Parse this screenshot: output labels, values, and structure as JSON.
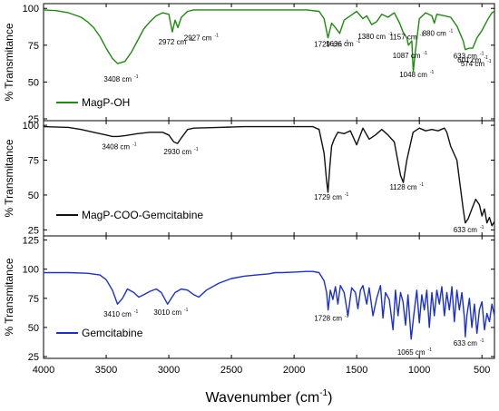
{
  "chart_data": {
    "type": "line",
    "xlabel": "Wavenumber (cm",
    "xlabel_sup": "-1",
    "xlabel_close": ")",
    "x_reversed": true,
    "xlim": [
      4000,
      400
    ],
    "x_ticks": [
      4000,
      3500,
      3000,
      2500,
      2000,
      1500,
      1000,
      500
    ],
    "grid": false,
    "legend_placement": "bottom-left of each panel",
    "panels": [
      {
        "ylabel": "% Transmitance",
        "ylim": [
          25,
          102
        ],
        "y_ticks": [
          25,
          50,
          75,
          100
        ],
        "color": "#1e8a0e",
        "series": {
          "name": "MagP-OH",
          "x": [
            4000,
            3900,
            3800,
            3700,
            3650,
            3600,
            3550,
            3500,
            3450,
            3408,
            3350,
            3300,
            3250,
            3200,
            3150,
            3100,
            3050,
            3000,
            2972,
            2950,
            2927,
            2900,
            2850,
            2800,
            2600,
            2400,
            2200,
            2000,
            1900,
            1800,
            1760,
            1729,
            1700,
            1670,
            1636,
            1600,
            1550,
            1500,
            1450,
            1420,
            1380,
            1340,
            1300,
            1250,
            1200,
            1157,
            1130,
            1100,
            1087,
            1060,
            1048,
            1035,
            1000,
            950,
            900,
            880,
            860,
            800,
            750,
            700,
            650,
            633,
            601,
            574,
            540,
            500,
            450,
            420,
            400
          ],
          "y": [
            99,
            98.5,
            97,
            94,
            91,
            87,
            81,
            73,
            66,
            62.5,
            64,
            70,
            78,
            86,
            91,
            95,
            97,
            96,
            84,
            92,
            87,
            94,
            98,
            99,
            99,
            99,
            99,
            99,
            99,
            98,
            93,
            80,
            90,
            87,
            83,
            92,
            95,
            98,
            93,
            95,
            89,
            91,
            96,
            94,
            97,
            90,
            84,
            80,
            75,
            78,
            57,
            68,
            93,
            97,
            95,
            90,
            96,
            95,
            94,
            88,
            78,
            72,
            73,
            73,
            80,
            85,
            93,
            97,
            98
          ]
        },
        "annotations": [
          {
            "label": "3408 cm",
            "sup": "-1",
            "x": 3408
          },
          {
            "label": "2972 cm",
            "sup": "-1",
            "x": 2972
          },
          {
            "label": "2927 cm",
            "sup": "-1",
            "x": 2927
          },
          {
            "label": "1729 cm",
            "sup": "-1",
            "x": 1729
          },
          {
            "label": "1636 cm",
            "sup": "-1",
            "x": 1636
          },
          {
            "label": "1380 cm",
            "sup": "-1",
            "x": 1380
          },
          {
            "label": "1157 cm",
            "sup": "-1",
            "x": 1157
          },
          {
            "label": "1087 cm",
            "sup": "-1",
            "x": 1087
          },
          {
            "label": "1048 cm",
            "sup": "-1",
            "x": 1048
          },
          {
            "label": "880 cm",
            "sup": "-1",
            "x": 880
          },
          {
            "label": "633 cm",
            "sup": "-1",
            "x": 633
          },
          {
            "label": "601 cm",
            "sup": "-1",
            "x": 601
          },
          {
            "label": "574 cm",
            "sup": "-1",
            "x": 574
          }
        ]
      },
      {
        "ylabel": "% Transmitance",
        "ylim": [
          22,
          102
        ],
        "y_ticks": [
          25,
          50,
          75,
          100
        ],
        "color": "#111111",
        "series": {
          "name": "MagP-COO-Gemcitabine",
          "x": [
            4000,
            3800,
            3700,
            3600,
            3500,
            3450,
            3408,
            3350,
            3250,
            3150,
            3050,
            3000,
            2960,
            2930,
            2900,
            2850,
            2800,
            2600,
            2400,
            2200,
            2000,
            1850,
            1800,
            1760,
            1740,
            1729,
            1715,
            1700,
            1680,
            1650,
            1600,
            1550,
            1500,
            1450,
            1400,
            1350,
            1300,
            1250,
            1200,
            1150,
            1128,
            1100,
            1050,
            1000,
            950,
            900,
            850,
            800,
            780,
            750,
            700,
            650,
            633,
            610,
            580,
            550,
            520,
            500,
            480,
            460,
            440,
            420,
            400
          ],
          "y": [
            99,
            98.5,
            97,
            95,
            93,
            92,
            92,
            92.5,
            94,
            95,
            95,
            93,
            88,
            87,
            91,
            97,
            98,
            98.5,
            99,
            99,
            99,
            99,
            97,
            80,
            60,
            52,
            70,
            85,
            90,
            95,
            94,
            96,
            86,
            98,
            90,
            93,
            97,
            93,
            88,
            64,
            59,
            75,
            95,
            98,
            96,
            97,
            96,
            98,
            95,
            85,
            75,
            40,
            30,
            33,
            40,
            47,
            43,
            35,
            40,
            30,
            34,
            28,
            31
          ]
        },
        "annotations": [
          {
            "label": "3408 cm",
            "sup": "-1",
            "x": 3408
          },
          {
            "label": "2930 cm",
            "sup": "-1",
            "x": 2930
          },
          {
            "label": "1729 cm",
            "sup": "-1",
            "x": 1729
          },
          {
            "label": "1128 cm",
            "sup": "-1",
            "x": 1128
          },
          {
            "label": "633 cm",
            "sup": "-1",
            "x": 633
          }
        ]
      },
      {
        "ylabel": "% Transmitance",
        "ylim": [
          25,
          127
        ],
        "y_ticks": [
          25,
          50,
          75,
          100,
          125
        ],
        "color": "#1a2fd6",
        "series": {
          "name": "Gemcitabine",
          "x": [
            4000,
            3800,
            3650,
            3550,
            3500,
            3450,
            3410,
            3370,
            3330,
            3280,
            3240,
            3200,
            3150,
            3100,
            3060,
            3030,
            3010,
            2980,
            2950,
            2900,
            2850,
            2800,
            2760,
            2700,
            2600,
            2500,
            2400,
            2300,
            2200,
            2150,
            2100,
            2000,
            1900,
            1850,
            1800,
            1760,
            1740,
            1728,
            1710,
            1690,
            1670,
            1650,
            1630,
            1600,
            1570,
            1540,
            1510,
            1490,
            1470,
            1450,
            1420,
            1400,
            1370,
            1340,
            1310,
            1290,
            1270,
            1240,
            1210,
            1190,
            1170,
            1150,
            1130,
            1110,
            1090,
            1065,
            1045,
            1020,
            1000,
            980,
            960,
            940,
            920,
            900,
            880,
            860,
            840,
            820,
            800,
            780,
            760,
            740,
            720,
            700,
            680,
            660,
            640,
            633,
            620,
            600,
            580,
            560,
            540,
            520,
            500,
            480,
            460,
            440,
            420,
            400
          ],
          "y": [
            97,
            97,
            96.5,
            95,
            91,
            82,
            70,
            75,
            83,
            80,
            76,
            78,
            81,
            83,
            80,
            74,
            70,
            75,
            80,
            83,
            82,
            78,
            76,
            82,
            88,
            92,
            94,
            95,
            96,
            97,
            97,
            97.5,
            98,
            98,
            97,
            90,
            80,
            65,
            82,
            74,
            85,
            70,
            86,
            80,
            60,
            84,
            80,
            66,
            82,
            86,
            70,
            84,
            60,
            75,
            86,
            58,
            80,
            74,
            48,
            82,
            60,
            80,
            72,
            52,
            78,
            40,
            60,
            82,
            54,
            78,
            65,
            82,
            50,
            80,
            60,
            82,
            70,
            85,
            60,
            80,
            65,
            85,
            55,
            82,
            65,
            80,
            58,
            42,
            60,
            75,
            50,
            70,
            45,
            65,
            72,
            48,
            62,
            55,
            70,
            60
          ]
        },
        "annotations": [
          {
            "label": "3410 cm",
            "sup": "-1",
            "x": 3410
          },
          {
            "label": "3010 cm",
            "sup": "-1",
            "x": 3010
          },
          {
            "label": "1728 cm",
            "sup": "-1",
            "x": 1728
          },
          {
            "label": "1065 cm",
            "sup": "-1",
            "x": 1065
          },
          {
            "label": "633 cm",
            "sup": "-1",
            "x": 633
          }
        ]
      }
    ]
  }
}
